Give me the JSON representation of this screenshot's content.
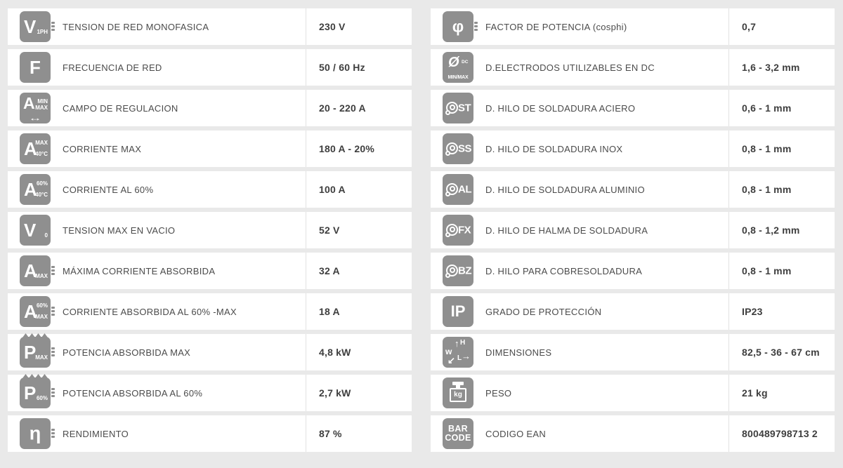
{
  "page": {
    "background_color": "#e9e9e9",
    "row_color": "#ffffff",
    "icon_color": "#8f8f8f",
    "label_color": "#4b4b4b",
    "value_color": "#3e3e3e",
    "divider_color": "#e2e2e2"
  },
  "tables": {
    "left": {
      "rows": [
        {
          "label": "TENSION DE RED MONOFASICA",
          "value": "230 V",
          "icon_name": "mains-voltage-1ph-icon",
          "icon": [
            {
              "t": "V",
              "c": "m off"
            },
            {
              "t": "1PH",
              "c": "s br"
            },
            {
              "t": "",
              "c": "lines",
              "n": "connector-lines"
            }
          ]
        },
        {
          "label": "FRECUENCIA DE RED",
          "value": "50 / 60 Hz",
          "icon_name": "mains-frequency-icon",
          "icon": [
            {
              "t": "F",
              "c": "m"
            }
          ]
        },
        {
          "label": "CAMPO DE REGULACION",
          "value": "20 - 220 A",
          "icon_name": "current-range-icon",
          "icon": [
            {
              "t": "A",
              "c": "m a-top"
            },
            {
              "t": "MIN",
              "c": "s a-min"
            },
            {
              "t": "MAX",
              "c": "s a-max"
            },
            {
              "t": "↔",
              "c": "arrow",
              "n": "range-arrow"
            }
          ]
        },
        {
          "label": "CORRIENTE MAX",
          "value": "180 A - 20%",
          "icon_name": "max-current-icon",
          "icon": [
            {
              "t": "A",
              "c": "m off"
            },
            {
              "t": "MAX",
              "c": "s tr"
            },
            {
              "t": "40°C",
              "c": "s br"
            }
          ]
        },
        {
          "label": "CORRIENTE AL 60%",
          "value": "100 A",
          "icon_name": "current-60pct-icon",
          "icon": [
            {
              "t": "A",
              "c": "m off"
            },
            {
              "t": "60%",
              "c": "s tr"
            },
            {
              "t": "40°C",
              "c": "s br"
            }
          ]
        },
        {
          "label": "TENSION MAX EN VACIO",
          "value": "52 V",
          "icon_name": "open-circuit-voltage-icon",
          "icon": [
            {
              "t": "V",
              "c": "m off"
            },
            {
              "t": "0",
              "c": "s br"
            }
          ]
        },
        {
          "label": "MÁXIMA CORRIENTE ABSORBIDA",
          "value": "32 A",
          "icon_name": "max-absorbed-current-icon",
          "icon": [
            {
              "t": "A",
              "c": "m off"
            },
            {
              "t": "MAX",
              "c": "s br"
            },
            {
              "t": "",
              "c": "lines",
              "n": "connector-lines"
            }
          ]
        },
        {
          "label": "CORRIENTE ABSORBIDA AL 60% -MAX",
          "value": "18 A",
          "icon_name": "absorbed-current-60pct-icon",
          "icon": [
            {
              "t": "A",
              "c": "m off"
            },
            {
              "t": "60%",
              "c": "s tr"
            },
            {
              "t": "MAX",
              "c": "s br"
            },
            {
              "t": "",
              "c": "lines",
              "n": "connector-lines"
            }
          ]
        },
        {
          "label": "POTENCIA ABSORBIDA MAX",
          "value": "4,8 kW",
          "icon_name": "max-absorbed-power-icon",
          "icon": [
            {
              "t": "",
              "c": "zig",
              "n": "zigzag-top"
            },
            {
              "t": "P",
              "c": "m off"
            },
            {
              "t": "MAX",
              "c": "s br"
            },
            {
              "t": "",
              "c": "lines",
              "n": "connector-lines"
            }
          ]
        },
        {
          "label": "POTENCIA ABSORBIDA AL 60%",
          "value": "2,7 kW",
          "icon_name": "absorbed-power-60pct-icon",
          "icon": [
            {
              "t": "",
              "c": "zig",
              "n": "zigzag-top"
            },
            {
              "t": "P",
              "c": "m off"
            },
            {
              "t": "60%",
              "c": "s br"
            },
            {
              "t": "",
              "c": "lines",
              "n": "connector-lines"
            }
          ]
        },
        {
          "label": "RENDIMIENTO",
          "value": "87 %",
          "icon_name": "efficiency-icon",
          "icon": [
            {
              "t": "η",
              "c": "m eta"
            },
            {
              "t": "",
              "c": "lines",
              "n": "connector-lines"
            }
          ]
        }
      ]
    },
    "right": {
      "rows": [
        {
          "label": "FACTOR DE POTENCIA (cosphi)",
          "value": "0,7",
          "icon_name": "power-factor-icon",
          "icon": [
            {
              "t": "φ",
              "c": "m phi"
            },
            {
              "t": "",
              "c": "lines",
              "n": "connector-lines"
            }
          ]
        },
        {
          "label": "D.ELECTRODOS UTILIZABLES EN DC",
          "value": "1,6 - 3,2 mm",
          "icon_name": "electrode-diameter-icon",
          "icon": [
            {
              "t": "Ø",
              "c": "m osl"
            },
            {
              "t": "DC",
              "c": "s dc"
            },
            {
              "t": "MIN/MAX",
              "c": "s under"
            }
          ]
        },
        {
          "label": "D. HILO DE SOLDADURA ACIERO",
          "value": "0,6 - 1 mm",
          "icon_name": "steel-wire-icon",
          "icon": [
            {
              "t": "",
              "c": "spool",
              "n": "wire-spool-glyph"
            },
            {
              "t": "ST",
              "c": "spool-lb"
            }
          ]
        },
        {
          "label": "D. HILO DE SOLDADURA INOX",
          "value": "0,8 - 1 mm",
          "icon_name": "stainless-wire-icon",
          "icon": [
            {
              "t": "",
              "c": "spool",
              "n": "wire-spool-glyph"
            },
            {
              "t": "SS",
              "c": "spool-lb"
            }
          ]
        },
        {
          "label": "D. HILO DE SOLDADURA ALUMINIO",
          "value": "0,8 - 1 mm",
          "icon_name": "aluminium-wire-icon",
          "icon": [
            {
              "t": "",
              "c": "spool",
              "n": "wire-spool-glyph"
            },
            {
              "t": "AL",
              "c": "spool-lb"
            }
          ]
        },
        {
          "label": "D. HILO DE HALMA DE SOLDADURA",
          "value": "0,8 - 1,2 mm",
          "icon_name": "flux-cored-wire-icon",
          "icon": [
            {
              "t": "",
              "c": "spool",
              "n": "wire-spool-glyph"
            },
            {
              "t": "FX",
              "c": "spool-lb"
            }
          ]
        },
        {
          "label": "D. HILO PARA COBRESOLDADURA",
          "value": "0,8 - 1 mm",
          "icon_name": "brazing-wire-icon",
          "icon": [
            {
              "t": "",
              "c": "spool",
              "n": "wire-spool-glyph"
            },
            {
              "t": "BZ",
              "c": "spool-lb"
            }
          ]
        },
        {
          "label": "GRADO DE PROTECCIÓN",
          "value": "IP23",
          "icon_name": "protection-class-icon",
          "icon": [
            {
              "t": "IP",
              "c": "m ip"
            }
          ]
        },
        {
          "label": "DIMENSIONES",
          "value": "82,5 - 36 - 67 cm",
          "icon_name": "dimensions-icon",
          "icon": [
            {
              "t": "w",
              "c": "whl-w"
            },
            {
              "t": "↑",
              "c": "whl-up"
            },
            {
              "t": "H",
              "c": "whl-h"
            },
            {
              "t": "↙",
              "c": "whl-sw"
            },
            {
              "t": "L",
              "c": "whl-l"
            },
            {
              "t": "→",
              "c": "whl-e"
            }
          ]
        },
        {
          "label": "PESO",
          "value": "21 kg",
          "icon_name": "weight-icon",
          "icon": [
            {
              "t": "",
              "c": "kg-knob",
              "n": "weight-knob"
            },
            {
              "t": "",
              "c": "kg-neck",
              "n": "weight-neck"
            },
            {
              "t": "kg",
              "c": "kg-body",
              "n": "weight-body"
            }
          ]
        },
        {
          "label": "CODIGO EAN",
          "value": "800489798713 2",
          "icon_name": "barcode-icon",
          "icon": [
            {
              "t": "BAR",
              "c": "bc l1"
            },
            {
              "t": "CODE",
              "c": "bc l2"
            }
          ]
        }
      ]
    }
  }
}
